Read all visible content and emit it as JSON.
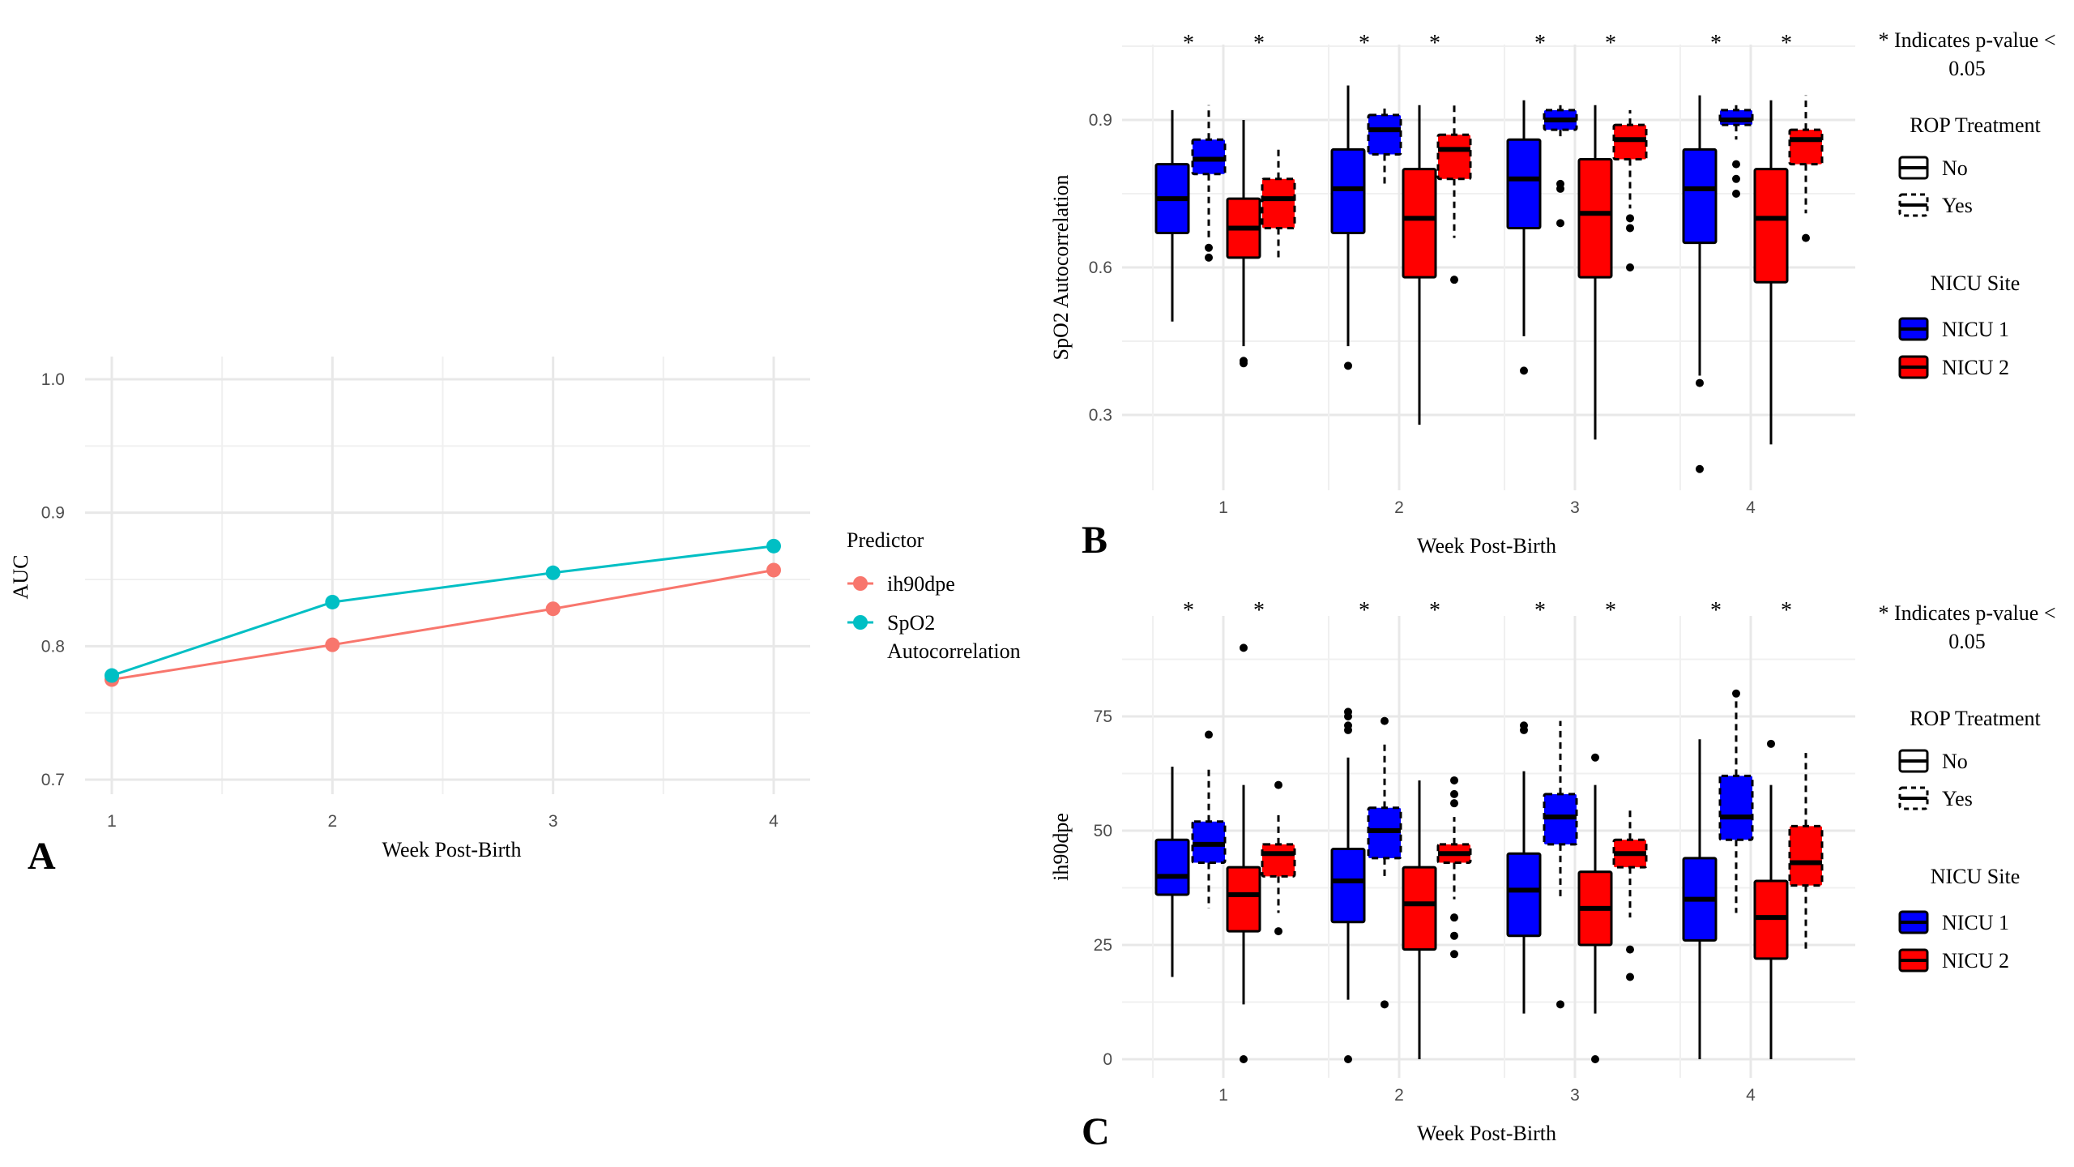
{
  "chart_data": [
    {
      "panel": "A",
      "type": "line",
      "xlabel": "Week Post-Birth",
      "ylabel": "AUC",
      "x": [
        1,
        2,
        3,
        4
      ],
      "xlim": [
        1,
        4
      ],
      "ylim": [
        0.7,
        1.0
      ],
      "x_ticks": [
        "1",
        "2",
        "3",
        "4"
      ],
      "y_ticks": [
        "0.7",
        "0.8",
        "0.9",
        "1.0"
      ],
      "grid": true,
      "legend_title": "Predictor",
      "legend_position": "right",
      "series": [
        {
          "name": "ih90dpe",
          "color": "#F8766D",
          "values": [
            0.775,
            0.801,
            0.828,
            0.857
          ]
        },
        {
          "name": "SpO2 Autocorrelation",
          "name_lines": [
            "SpO2",
            "Autocorrelation"
          ],
          "color": "#00BFC4",
          "values": [
            0.778,
            0.833,
            0.855,
            0.875
          ]
        }
      ]
    },
    {
      "panel": "B",
      "type": "box",
      "xlabel": "Week Post-Birth",
      "ylabel": "SpO2 Autocorrelation",
      "categories": [
        "1",
        "2",
        "3",
        "4"
      ],
      "ylim": [
        0.15,
        1.0
      ],
      "y_ticks": [
        0.3,
        0.6,
        0.9
      ],
      "y_tick_labels": [
        "0.3",
        "0.6",
        "0.9"
      ],
      "grid": true,
      "significance_marker": "*",
      "note_lines": [
        "* Indicates p-value <",
        "0.05"
      ],
      "legend_position": "right",
      "boxes": [
        {
          "week": 1,
          "site": "NICU 1",
          "rop": "No",
          "min": 0.49,
          "q1": 0.67,
          "median": 0.74,
          "q3": 0.81,
          "max": 0.92,
          "outliers": []
        },
        {
          "week": 1,
          "site": "NICU 1",
          "rop": "Yes",
          "min": 0.66,
          "q1": 0.79,
          "median": 0.82,
          "q3": 0.86,
          "max": 0.93,
          "outliers": [
            0.64,
            0.62
          ]
        },
        {
          "week": 1,
          "site": "NICU 2",
          "rop": "No",
          "min": 0.44,
          "q1": 0.62,
          "median": 0.68,
          "q3": 0.74,
          "max": 0.9,
          "outliers": [
            0.41,
            0.405
          ]
        },
        {
          "week": 1,
          "site": "NICU 2",
          "rop": "Yes",
          "min": 0.62,
          "q1": 0.68,
          "median": 0.74,
          "q3": 0.78,
          "max": 0.84,
          "outliers": []
        },
        {
          "week": 2,
          "site": "NICU 1",
          "rop": "No",
          "min": 0.44,
          "q1": 0.67,
          "median": 0.76,
          "q3": 0.84,
          "max": 0.97,
          "outliers": [
            0.4
          ]
        },
        {
          "week": 2,
          "site": "NICU 1",
          "rop": "Yes",
          "min": 0.77,
          "q1": 0.83,
          "median": 0.88,
          "q3": 0.91,
          "max": 0.93,
          "outliers": []
        },
        {
          "week": 2,
          "site": "NICU 2",
          "rop": "No",
          "min": 0.28,
          "q1": 0.58,
          "median": 0.7,
          "q3": 0.8,
          "max": 0.93,
          "outliers": []
        },
        {
          "week": 2,
          "site": "NICU 2",
          "rop": "Yes",
          "min": 0.66,
          "q1": 0.78,
          "median": 0.84,
          "q3": 0.87,
          "max": 0.93,
          "outliers": [
            0.575
          ]
        },
        {
          "week": 3,
          "site": "NICU 1",
          "rop": "No",
          "min": 0.46,
          "q1": 0.68,
          "median": 0.78,
          "q3": 0.86,
          "max": 0.94,
          "outliers": [
            0.39
          ]
        },
        {
          "week": 3,
          "site": "NICU 1",
          "rop": "Yes",
          "min": 0.86,
          "q1": 0.88,
          "median": 0.9,
          "q3": 0.92,
          "max": 0.93,
          "outliers": [
            0.77,
            0.76,
            0.69
          ]
        },
        {
          "week": 3,
          "site": "NICU 2",
          "rop": "No",
          "min": 0.25,
          "q1": 0.58,
          "median": 0.71,
          "q3": 0.82,
          "max": 0.93,
          "outliers": []
        },
        {
          "week": 3,
          "site": "NICU 2",
          "rop": "Yes",
          "min": 0.72,
          "q1": 0.82,
          "median": 0.86,
          "q3": 0.89,
          "max": 0.92,
          "outliers": [
            0.7,
            0.68,
            0.6
          ]
        },
        {
          "week": 4,
          "site": "NICU 1",
          "rop": "No",
          "min": 0.38,
          "q1": 0.65,
          "median": 0.76,
          "q3": 0.84,
          "max": 0.95,
          "outliers": [
            0.365,
            0.19
          ]
        },
        {
          "week": 4,
          "site": "NICU 1",
          "rop": "Yes",
          "min": 0.86,
          "q1": 0.89,
          "median": 0.9,
          "q3": 0.92,
          "max": 0.93,
          "outliers": [
            0.81,
            0.78,
            0.75
          ]
        },
        {
          "week": 4,
          "site": "NICU 2",
          "rop": "No",
          "min": 0.24,
          "q1": 0.57,
          "median": 0.7,
          "q3": 0.8,
          "max": 0.94,
          "outliers": []
        },
        {
          "week": 4,
          "site": "NICU 2",
          "rop": "Yes",
          "min": 0.71,
          "q1": 0.81,
          "median": 0.86,
          "q3": 0.88,
          "max": 0.95,
          "outliers": [
            0.66
          ]
        }
      ]
    },
    {
      "panel": "C",
      "type": "box",
      "xlabel": "Week Post-Birth",
      "ylabel": "ih90dpe",
      "categories": [
        "1",
        "2",
        "3",
        "4"
      ],
      "ylim": [
        -5,
        98
      ],
      "y_ticks": [
        0,
        25,
        50,
        75
      ],
      "y_tick_labels": [
        "0",
        "25",
        "50",
        "75"
      ],
      "grid": true,
      "significance_marker": "*",
      "note_lines": [
        "* Indicates p-value <",
        "0.05"
      ],
      "legend_position": "right",
      "boxes": [
        {
          "week": 1,
          "site": "NICU 1",
          "rop": "No",
          "min": 18,
          "q1": 36,
          "median": 40,
          "q3": 48,
          "max": 64,
          "outliers": []
        },
        {
          "week": 1,
          "site": "NICU 1",
          "rop": "Yes",
          "min": 33,
          "q1": 43,
          "median": 47,
          "q3": 52,
          "max": 64,
          "outliers": [
            71
          ]
        },
        {
          "week": 1,
          "site": "NICU 2",
          "rop": "No",
          "min": 12,
          "q1": 28,
          "median": 36,
          "q3": 42,
          "max": 60,
          "outliers": [
            0,
            90
          ]
        },
        {
          "week": 1,
          "site": "NICU 2",
          "rop": "Yes",
          "min": 32,
          "q1": 40,
          "median": 45,
          "q3": 47,
          "max": 54,
          "outliers": [
            28,
            60
          ]
        },
        {
          "week": 2,
          "site": "NICU 1",
          "rop": "No",
          "min": 13,
          "q1": 30,
          "median": 39,
          "q3": 46,
          "max": 66,
          "outliers": [
            0,
            72,
            73,
            75,
            76
          ]
        },
        {
          "week": 2,
          "site": "NICU 1",
          "rop": "Yes",
          "min": 40,
          "q1": 44,
          "median": 50,
          "q3": 55,
          "max": 69,
          "outliers": [
            12,
            74
          ]
        },
        {
          "week": 2,
          "site": "NICU 2",
          "rop": "No",
          "min": 0,
          "q1": 24,
          "median": 34,
          "q3": 42,
          "max": 61,
          "outliers": []
        },
        {
          "week": 2,
          "site": "NICU 2",
          "rop": "Yes",
          "min": 35,
          "q1": 43,
          "median": 45,
          "q3": 47,
          "max": 53,
          "outliers": [
            23,
            27,
            31,
            56,
            58,
            61
          ]
        },
        {
          "week": 3,
          "site": "NICU 1",
          "rop": "No",
          "min": 10,
          "q1": 27,
          "median": 37,
          "q3": 45,
          "max": 63,
          "outliers": [
            72,
            73
          ]
        },
        {
          "week": 3,
          "site": "NICU 1",
          "rop": "Yes",
          "min": 35,
          "q1": 47,
          "median": 53,
          "q3": 58,
          "max": 74,
          "outliers": [
            12
          ]
        },
        {
          "week": 3,
          "site": "NICU 2",
          "rop": "No",
          "min": 10,
          "q1": 25,
          "median": 33,
          "q3": 41,
          "max": 60,
          "outliers": [
            0,
            66
          ]
        },
        {
          "week": 3,
          "site": "NICU 2",
          "rop": "Yes",
          "min": 31,
          "q1": 42,
          "median": 45,
          "q3": 48,
          "max": 55,
          "outliers": [
            18,
            24
          ]
        },
        {
          "week": 4,
          "site": "NICU 1",
          "rop": "No",
          "min": 0,
          "q1": 26,
          "median": 35,
          "q3": 44,
          "max": 70,
          "outliers": []
        },
        {
          "week": 4,
          "site": "NICU 1",
          "rop": "Yes",
          "min": 32,
          "q1": 48,
          "median": 53,
          "q3": 62,
          "max": 80,
          "outliers": [
            80
          ]
        },
        {
          "week": 4,
          "site": "NICU 2",
          "rop": "No",
          "min": 0,
          "q1": 22,
          "median": 31,
          "q3": 39,
          "max": 60,
          "outliers": [
            69
          ]
        },
        {
          "week": 4,
          "site": "NICU 2",
          "rop": "Yes",
          "min": 24,
          "q1": 38,
          "median": 43,
          "q3": 51,
          "max": 67,
          "outliers": []
        }
      ]
    }
  ],
  "legend": {
    "rop_title": "ROP Treatment",
    "rop_no": "No",
    "rop_yes": "Yes",
    "site_title": "NICU Site",
    "site1": "NICU 1",
    "site2": "NICU 2",
    "site1_color": "#0000FF",
    "site2_color": "#FF0000"
  },
  "panel_labels": {
    "a": "A",
    "b": "B",
    "c": "C"
  }
}
